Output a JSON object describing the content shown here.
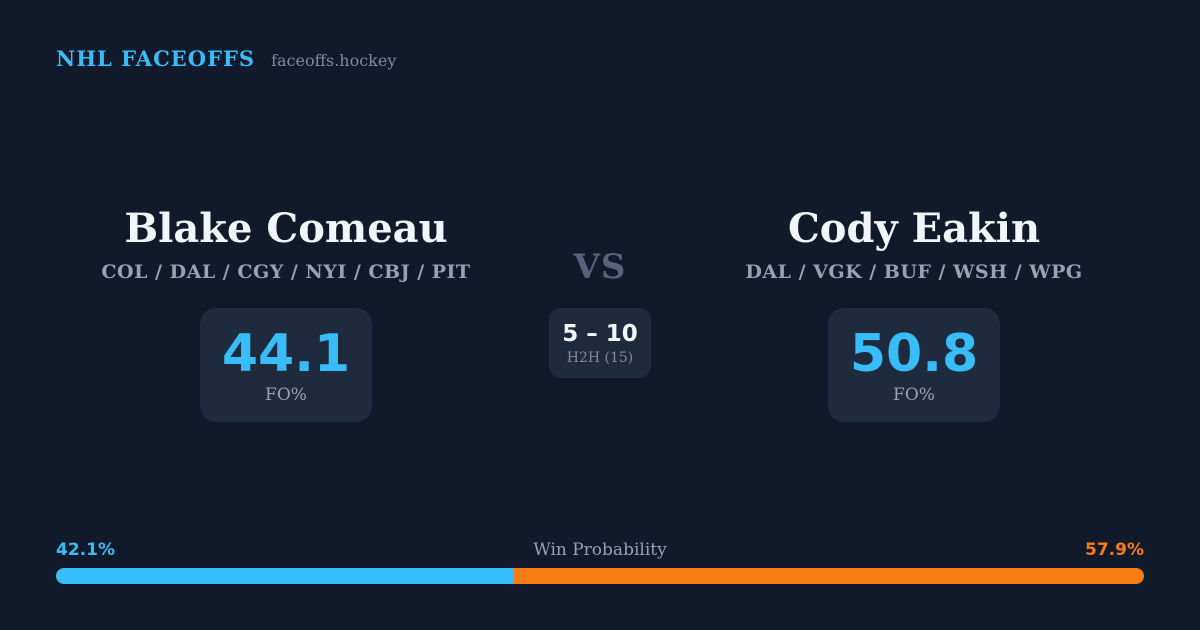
{
  "header": {
    "brand": "NHL FACEOFFS",
    "site": "faceoffs.hockey"
  },
  "matchup": {
    "player_left": {
      "name": "Blake Comeau",
      "teams": "COL / DAL / CGY / NYI / CBJ / PIT",
      "fo_value": "44.1",
      "fo_label": "FO%"
    },
    "player_right": {
      "name": "Cody Eakin",
      "teams": "DAL / VGK / BUF / WSH / WPG",
      "fo_value": "50.8",
      "fo_label": "FO%"
    },
    "vs_label": "VS",
    "h2h": {
      "score": "5 – 10",
      "label": "H2H (15)"
    }
  },
  "win_probability": {
    "label": "Win Probability",
    "left_pct_label": "42.1%",
    "right_pct_label": "57.9%",
    "left_value": 42.1,
    "right_value": 57.9
  },
  "colors": {
    "background": "#111a2b",
    "card": "#1e2a3d",
    "accent_blue": "#38bdf8",
    "accent_orange": "#f97b16",
    "text_white": "#f2f6fb",
    "text_muted": "#94a3b8"
  }
}
